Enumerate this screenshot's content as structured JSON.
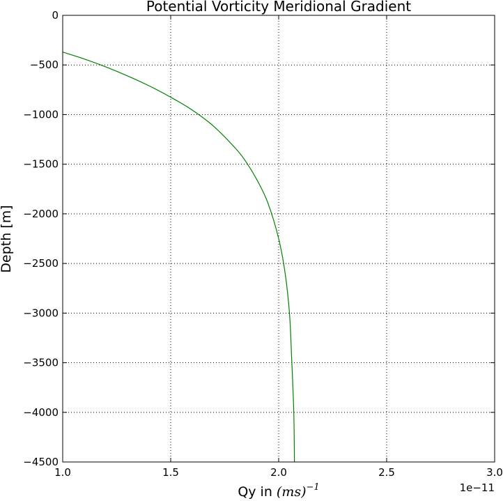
{
  "chart_data": {
    "type": "line",
    "title": "Potential Vorticity Meridional Gradient",
    "xlabel_text": "Qy in ",
    "xlabel_math": "(ms)",
    "xlabel_exponent": "−1",
    "ylabel": "Depth [m]",
    "x_offset_label": "1e−11",
    "xlim": [
      1.0,
      3.0
    ],
    "ylim": [
      -4500,
      0
    ],
    "xticks": [
      1.0,
      1.5,
      2.0,
      2.5,
      3.0
    ],
    "xtick_labels": [
      "1.0",
      "1.5",
      "2.0",
      "2.5",
      "3.0"
    ],
    "yticks": [
      0,
      -500,
      -1000,
      -1500,
      -2000,
      -2500,
      -3000,
      -3500,
      -4000,
      -4500
    ],
    "ytick_labels": [
      "0",
      "−500",
      "−1000",
      "−1500",
      "−2000",
      "−2500",
      "−3000",
      "−3500",
      "−4000",
      "−4500"
    ],
    "grid": true,
    "grid_style": "dotted",
    "line_color": "#008000",
    "series": [
      {
        "x": [
          1.0,
          1.1,
          1.2,
          1.3,
          1.4,
          1.5,
          1.6,
          1.7,
          1.8,
          1.85,
          1.9,
          1.95,
          2.0,
          2.03,
          2.05,
          2.06,
          2.07,
          2.073
        ],
        "y": [
          -370,
          -440,
          -520,
          -610,
          -710,
          -825,
          -955,
          -1120,
          -1340,
          -1480,
          -1660,
          -1890,
          -2250,
          -2600,
          -3000,
          -3450,
          -4000,
          -4500
        ]
      }
    ]
  }
}
